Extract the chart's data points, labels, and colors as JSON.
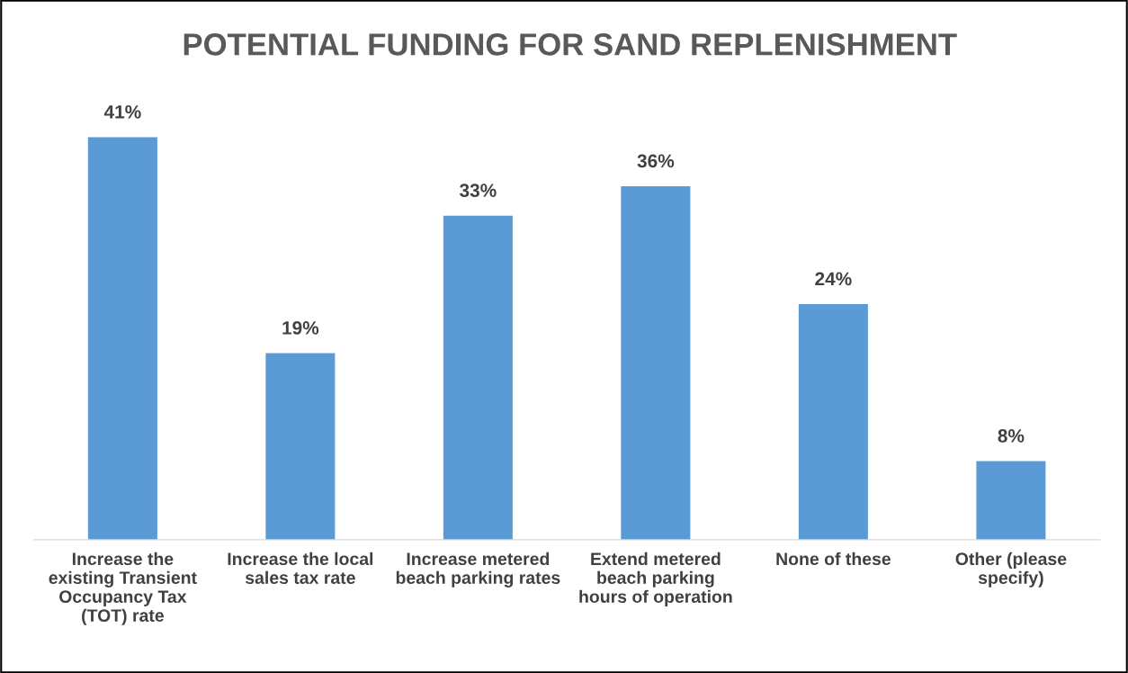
{
  "chart_data": {
    "type": "bar",
    "title": "POTENTIAL FUNDING FOR SAND REPLENISHMENT",
    "categories": [
      "Increase the\nexisting Transient\nOccupancy Tax\n(TOT) rate",
      "Increase the local\nsales tax rate",
      "Increase metered\nbeach parking rates",
      "Extend metered\nbeach parking\nhours of operation",
      "None of these",
      "Other (please\nspecify)"
    ],
    "values": [
      41,
      19,
      33,
      36,
      24,
      8
    ],
    "value_labels": [
      "41%",
      "19%",
      "33%",
      "36%",
      "24%",
      "8%"
    ],
    "color": "#5b9bd5",
    "grid": false,
    "legend": false
  }
}
